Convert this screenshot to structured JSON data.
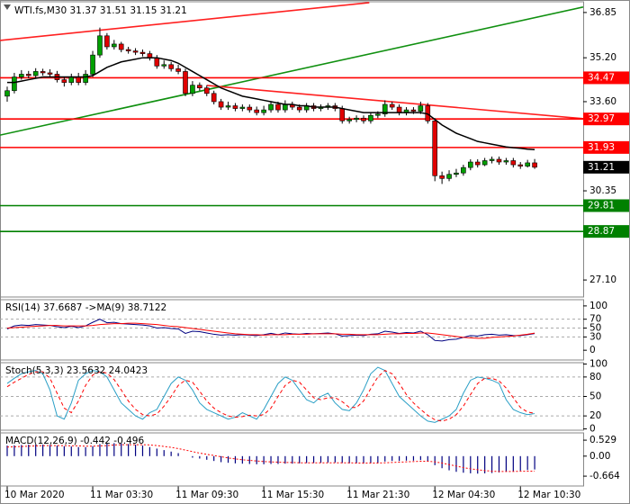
{
  "chart_data": [
    {
      "type": "candlestick",
      "title": "WTI.fs,M30",
      "categories": [
        "10 Mar 2020",
        null,
        null,
        null,
        null,
        null,
        null,
        null,
        null,
        null,
        null,
        null,
        "11 Mar 03:30",
        null,
        null,
        null,
        null,
        null,
        null,
        null,
        null,
        null,
        null,
        null,
        "11 Mar 09:30",
        null,
        null,
        null,
        null,
        null,
        null,
        null,
        null,
        null,
        null,
        null,
        "11 Mar 15:30",
        null,
        null,
        null,
        null,
        null,
        null,
        null,
        null,
        null,
        null,
        null,
        "11 Mar 21:30",
        null,
        null,
        null,
        null,
        null,
        null,
        null,
        null,
        null,
        null,
        null,
        "12 Mar 04:30",
        null,
        null,
        null,
        null,
        null,
        null,
        null,
        null,
        null,
        null,
        null,
        "12 Mar 10:30",
        null,
        null
      ],
      "open": [
        33.8,
        34.0,
        34.5,
        34.6,
        34.55,
        34.7,
        34.65,
        34.6,
        34.4,
        34.3,
        34.5,
        34.3,
        34.6,
        35.3,
        36.0,
        35.6,
        35.7,
        35.5,
        35.45,
        35.4,
        35.35,
        35.2,
        34.9,
        34.95,
        34.8,
        34.7,
        33.9,
        34.2,
        34.1,
        33.9,
        33.6,
        33.4,
        33.45,
        33.35,
        33.4,
        33.3,
        33.2,
        33.3,
        33.5,
        33.3,
        33.5,
        33.4,
        33.3,
        33.45,
        33.35,
        33.4,
        33.45,
        33.35,
        32.9,
        32.95,
        33.0,
        32.9,
        33.1,
        33.15,
        33.5,
        33.4,
        33.2,
        33.3,
        33.25,
        33.45,
        32.9,
        30.9,
        30.8,
        30.95,
        31.0,
        31.2,
        31.4,
        31.3,
        31.45,
        31.5,
        31.4,
        31.45,
        31.3,
        31.25,
        31.37
      ],
      "high": [
        34.15,
        34.65,
        34.75,
        34.72,
        34.82,
        34.8,
        34.78,
        34.72,
        34.5,
        34.62,
        34.65,
        34.75,
        35.45,
        36.3,
        36.1,
        35.85,
        35.78,
        35.6,
        35.55,
        35.5,
        35.45,
        35.3,
        35.1,
        35.05,
        34.95,
        34.8,
        34.35,
        34.3,
        34.2,
        34.0,
        33.7,
        33.6,
        33.55,
        33.5,
        33.5,
        33.42,
        33.45,
        33.62,
        33.6,
        33.65,
        33.6,
        33.5,
        33.55,
        33.55,
        33.5,
        33.55,
        33.55,
        33.45,
        33.05,
        33.1,
        33.1,
        33.2,
        33.25,
        33.65,
        33.6,
        33.5,
        33.4,
        33.4,
        33.6,
        33.55,
        33.0,
        31.05,
        31.1,
        31.15,
        31.3,
        31.5,
        31.5,
        31.55,
        31.6,
        31.6,
        31.55,
        31.55,
        31.4,
        31.48,
        31.51
      ],
      "low": [
        33.6,
        33.9,
        34.4,
        34.45,
        34.45,
        34.55,
        34.5,
        34.3,
        34.15,
        34.2,
        34.2,
        34.2,
        34.5,
        35.2,
        35.5,
        35.5,
        35.4,
        35.35,
        35.3,
        35.25,
        35.1,
        34.8,
        34.8,
        34.7,
        34.6,
        33.8,
        33.8,
        34.0,
        33.8,
        33.5,
        33.3,
        33.3,
        33.25,
        33.25,
        33.2,
        33.1,
        33.1,
        33.2,
        33.2,
        33.2,
        33.3,
        33.2,
        33.2,
        33.25,
        33.25,
        33.3,
        33.25,
        32.8,
        32.8,
        32.85,
        32.8,
        32.8,
        33.0,
        33.05,
        33.3,
        33.1,
        33.1,
        33.15,
        33.15,
        32.8,
        30.7,
        30.6,
        30.7,
        30.85,
        30.9,
        31.1,
        31.2,
        31.25,
        31.35,
        31.3,
        31.3,
        31.2,
        31.15,
        31.2,
        31.15
      ],
      "close": [
        34.0,
        34.5,
        34.6,
        34.55,
        34.7,
        34.65,
        34.6,
        34.4,
        34.3,
        34.5,
        34.3,
        34.6,
        35.3,
        36.0,
        35.6,
        35.7,
        35.5,
        35.45,
        35.4,
        35.35,
        35.2,
        34.9,
        34.95,
        34.8,
        34.7,
        33.9,
        34.2,
        34.1,
        33.9,
        33.6,
        33.4,
        33.45,
        33.35,
        33.4,
        33.3,
        33.2,
        33.3,
        33.5,
        33.3,
        33.5,
        33.4,
        33.3,
        33.45,
        33.35,
        33.4,
        33.45,
        33.35,
        32.9,
        32.95,
        33.0,
        32.9,
        33.1,
        33.15,
        33.5,
        33.4,
        33.2,
        33.3,
        33.25,
        33.45,
        32.9,
        30.9,
        30.8,
        30.95,
        31.0,
        31.2,
        31.4,
        31.3,
        31.45,
        31.5,
        31.4,
        31.45,
        31.3,
        31.25,
        31.37,
        31.21
      ],
      "up_color": "#00a000",
      "down_color": "#e00000",
      "wick_color": "#000000",
      "ma": {
        "color": "#000000",
        "values": [
          34.3,
          34.3,
          34.35,
          34.4,
          34.45,
          34.5,
          34.5,
          34.5,
          34.5,
          34.5,
          34.5,
          34.5,
          34.55,
          34.7,
          34.85,
          34.95,
          35.05,
          35.1,
          35.15,
          35.2,
          35.2,
          35.2,
          35.15,
          35.1,
          35.0,
          34.85,
          34.7,
          34.55,
          34.4,
          34.25,
          34.1,
          34.0,
          33.9,
          33.8,
          33.75,
          33.7,
          33.65,
          33.6,
          33.55,
          33.5,
          33.5,
          33.45,
          33.45,
          33.4,
          33.4,
          33.4,
          33.4,
          33.35,
          33.3,
          33.25,
          33.2,
          33.2,
          33.2,
          33.2,
          33.2,
          33.2,
          33.2,
          33.2,
          33.2,
          33.15,
          32.95,
          32.75,
          32.6,
          32.45,
          32.35,
          32.25,
          32.15,
          32.1,
          32.05,
          32.0,
          31.95,
          31.92,
          31.9,
          31.87,
          31.85
        ]
      },
      "levels": [
        {
          "value": 34.47,
          "color": "#ff0000"
        },
        {
          "value": 32.97,
          "color": "#ff0000"
        },
        {
          "value": 31.93,
          "color": "#ff0000"
        },
        {
          "value": 29.81,
          "color": "#008000"
        },
        {
          "value": 28.87,
          "color": "#008000"
        }
      ],
      "trendlines": [
        {
          "x": [
            -1.01,
            50.8
          ],
          "y": [
            35.83,
            37.21
          ],
          "color": "#ff2020"
        },
        {
          "x": [
            -1.01,
            80.8
          ],
          "y": [
            32.38,
            37.05
          ],
          "color": "#109010"
        },
        {
          "x": [
            28.03,
            80.8
          ],
          "y": [
            34.19,
            32.98
          ],
          "color": "#ff2020"
        }
      ],
      "last_color": "#000000",
      "ylim": [
        26.48,
        37.24
      ],
      "yticks": [
        36.85,
        {
          "value": 35.2,
          "label": "35.20"
        },
        {
          "value": 33.6,
          "label": "33.60"
        },
        30.35,
        {
          "value": 27.1,
          "label": "27.10"
        }
      ]
    },
    {
      "type": "indicator",
      "series": [
        {
          "name": "RSI(14)",
          "color": "#000080",
          "style": "solid",
          "values": [
            48,
            55,
            57,
            56,
            58,
            57,
            56,
            53,
            51,
            54,
            51,
            55,
            63,
            70,
            62,
            63,
            60,
            59,
            58,
            57,
            55,
            50,
            51,
            49,
            48,
            38,
            43,
            42,
            39,
            36,
            34,
            35,
            34,
            35,
            34,
            33,
            35,
            38,
            35,
            39,
            37,
            36,
            38,
            37,
            38,
            39,
            37,
            32,
            33,
            34,
            33,
            36,
            37,
            43,
            41,
            38,
            40,
            39,
            43,
            35,
            22,
            21,
            24,
            25,
            29,
            33,
            32,
            35,
            36,
            34,
            35,
            33,
            33,
            35,
            37.6687
          ]
        },
        {
          "name": "->MA(9)",
          "color": "#ff0000",
          "style": "solid",
          "values": [
            50,
            51,
            52,
            53,
            54,
            55,
            56,
            56,
            55,
            55,
            55,
            55,
            56,
            58,
            59,
            60,
            60,
            61,
            61,
            60,
            59,
            58,
            56,
            54,
            53,
            51,
            49,
            47,
            45,
            43,
            41,
            39,
            37,
            36,
            35,
            35,
            34,
            35,
            35,
            35,
            36,
            36,
            36,
            37,
            37,
            37,
            37,
            36,
            36,
            35,
            35,
            35,
            35,
            36,
            37,
            37,
            38,
            38,
            39,
            39,
            37,
            35,
            33,
            31,
            29,
            28,
            27,
            27,
            29,
            30,
            31,
            32,
            34,
            36,
            38.7122
          ]
        }
      ],
      "ylim": [
        -22,
        114
      ],
      "yticks": [
        0,
        30,
        50,
        70,
        100
      ],
      "grid": true
    },
    {
      "type": "indicator",
      "title": "Stoch(5,3,3)",
      "series": [
        {
          "color": "#2a9fc6",
          "style": "solid",
          "values": [
            70,
            78,
            85,
            88,
            90,
            85,
            60,
            20,
            15,
            40,
            75,
            85,
            90,
            88,
            80,
            60,
            40,
            30,
            20,
            15,
            25,
            30,
            50,
            70,
            80,
            75,
            60,
            40,
            30,
            25,
            20,
            15,
            18,
            25,
            20,
            15,
            30,
            50,
            70,
            80,
            75,
            60,
            45,
            40,
            50,
            55,
            40,
            30,
            28,
            40,
            60,
            85,
            95,
            90,
            70,
            50,
            40,
            30,
            20,
            12,
            10,
            15,
            20,
            30,
            55,
            75,
            80,
            78,
            75,
            70,
            45,
            30,
            25,
            22,
            23.5632
          ]
        },
        {
          "color": "#ff0000",
          "style": "dashed",
          "values": [
            65,
            72,
            78,
            84,
            88,
            88,
            78,
            55,
            32,
            25,
            43,
            67,
            83,
            88,
            86,
            76,
            60,
            43,
            30,
            22,
            20,
            23,
            35,
            50,
            67,
            75,
            72,
            58,
            43,
            32,
            25,
            20,
            18,
            19,
            21,
            20,
            22,
            32,
            50,
            67,
            75,
            72,
            60,
            48,
            45,
            48,
            48,
            42,
            33,
            33,
            43,
            62,
            80,
            90,
            85,
            70,
            53,
            40,
            30,
            21,
            14,
            12,
            15,
            22,
            35,
            53,
            70,
            78,
            78,
            74,
            63,
            48,
            33,
            26,
            24.0423
          ]
        }
      ],
      "ylim": [
        -2,
        102
      ],
      "yticks": [
        0,
        20,
        50,
        80,
        100
      ],
      "grid": true
    },
    {
      "type": "indicator",
      "title": "MACD(12,26,9)",
      "series": [
        {
          "color": "#000080",
          "style": "bar",
          "values": [
            0.35,
            0.36,
            0.37,
            0.38,
            0.38,
            0.38,
            0.37,
            0.35,
            0.33,
            0.32,
            0.3,
            0.3,
            0.33,
            0.4,
            0.42,
            0.43,
            0.42,
            0.4,
            0.38,
            0.35,
            0.3,
            0.25,
            0.2,
            0.15,
            0.1,
            0.0,
            -0.05,
            -0.08,
            -0.12,
            -0.16,
            -0.2,
            -0.22,
            -0.24,
            -0.25,
            -0.26,
            -0.27,
            -0.27,
            -0.26,
            -0.26,
            -0.25,
            -0.25,
            -0.24,
            -0.23,
            -0.23,
            -0.22,
            -0.21,
            -0.21,
            -0.23,
            -0.24,
            -0.24,
            -0.25,
            -0.24,
            -0.22,
            -0.18,
            -0.16,
            -0.16,
            -0.15,
            -0.15,
            -0.13,
            -0.16,
            -0.3,
            -0.4,
            -0.47,
            -0.52,
            -0.55,
            -0.57,
            -0.58,
            -0.57,
            -0.56,
            -0.54,
            -0.52,
            -0.5,
            -0.48,
            -0.46,
            -0.442
          ]
        },
        {
          "color": "#ff0000",
          "style": "dotted",
          "values": [
            0.3,
            0.31,
            0.32,
            0.33,
            0.34,
            0.35,
            0.35,
            0.35,
            0.35,
            0.34,
            0.34,
            0.33,
            0.33,
            0.34,
            0.35,
            0.37,
            0.38,
            0.38,
            0.38,
            0.38,
            0.37,
            0.35,
            0.32,
            0.29,
            0.25,
            0.2,
            0.15,
            0.1,
            0.06,
            0.02,
            -0.02,
            -0.06,
            -0.09,
            -0.12,
            -0.14,
            -0.16,
            -0.18,
            -0.19,
            -0.2,
            -0.21,
            -0.21,
            -0.22,
            -0.22,
            -0.22,
            -0.22,
            -0.22,
            -0.22,
            -0.22,
            -0.22,
            -0.23,
            -0.23,
            -0.23,
            -0.23,
            -0.22,
            -0.21,
            -0.2,
            -0.19,
            -0.18,
            -0.17,
            -0.17,
            -0.19,
            -0.23,
            -0.28,
            -0.33,
            -0.38,
            -0.42,
            -0.45,
            -0.48,
            -0.5,
            -0.51,
            -0.51,
            -0.51,
            -0.5,
            -0.5,
            -0.496
          ]
        }
      ],
      "ylim": [
        -0.99,
        0.77
      ],
      "yticks": [
        0.529,
        {
          "value": 0,
          "label": "0.00"
        },
        -0.664
      ]
    }
  ]
}
